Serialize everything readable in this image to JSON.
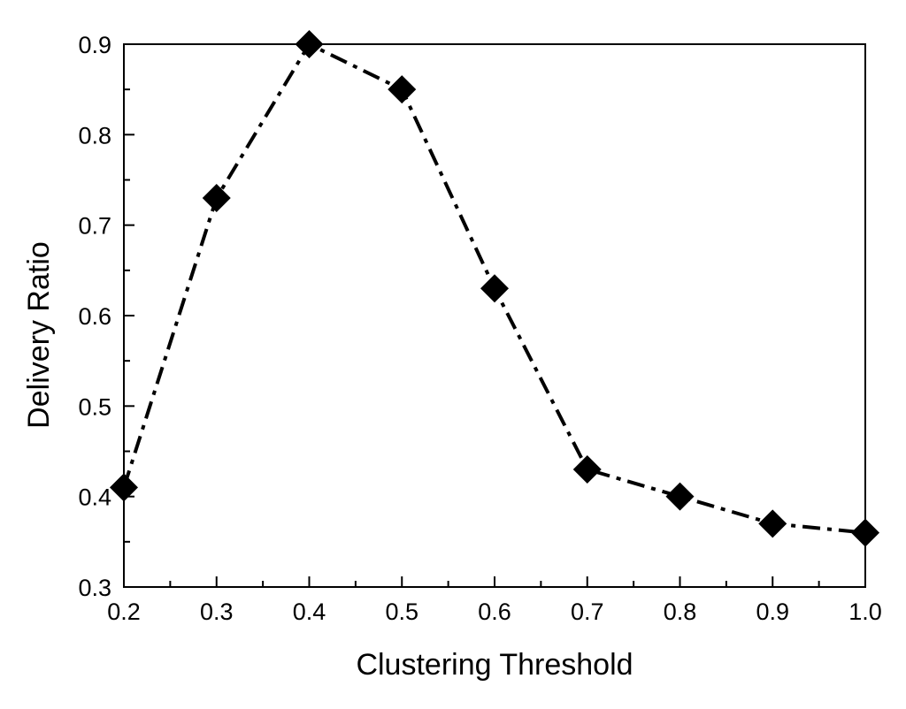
{
  "chart_data": {
    "type": "line",
    "title": "",
    "xlabel": "Clustering Threshold",
    "ylabel": "Delivery Ratio",
    "xlim": [
      0.2,
      1.0
    ],
    "ylim": [
      0.3,
      0.9
    ],
    "x_ticks": [
      "0.2",
      "0.3",
      "0.4",
      "0.5",
      "0.6",
      "0.7",
      "0.8",
      "0.9",
      "1.0"
    ],
    "y_ticks": [
      "0.3",
      "0.4",
      "0.5",
      "0.6",
      "0.7",
      "0.8",
      "0.9"
    ],
    "grid": false,
    "legend": "none",
    "series": [
      {
        "x": [
          0.2,
          0.3,
          0.4,
          0.5,
          0.6,
          0.7,
          0.8,
          0.9,
          1.0
        ],
        "values": [
          0.41,
          0.73,
          0.9,
          0.85,
          0.63,
          0.43,
          0.4,
          0.37,
          0.36
        ],
        "line_style": "dash-dot",
        "marker": "diamond",
        "color": "#000000"
      }
    ]
  }
}
